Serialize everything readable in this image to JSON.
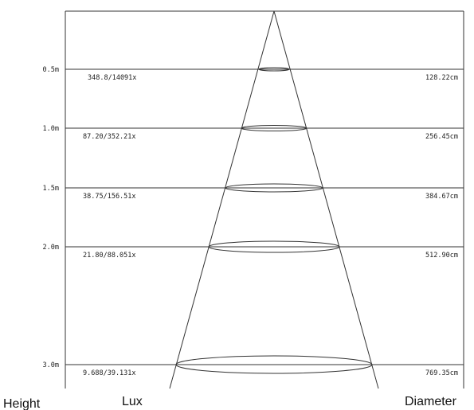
{
  "rows": [
    {
      "height": "0.5m",
      "lux": "348.8/14091x",
      "diameter": "128.22cm"
    },
    {
      "height": "1.0m",
      "lux": "87.20/352.21x",
      "diameter": "256.45cm"
    },
    {
      "height": "1.5m",
      "lux": "38.75/156.51x",
      "diameter": "384.67cm"
    },
    {
      "height": "2.0m",
      "lux": "21.80/88.051x",
      "diameter": "512.90cm"
    },
    {
      "height": "3.0m",
      "lux": "9.688/39.131x",
      "diameter": "769.35cm"
    }
  ],
  "footer": {
    "height_label": "Height",
    "lux_label": "Lux",
    "diameter_label": "Diameter"
  }
}
